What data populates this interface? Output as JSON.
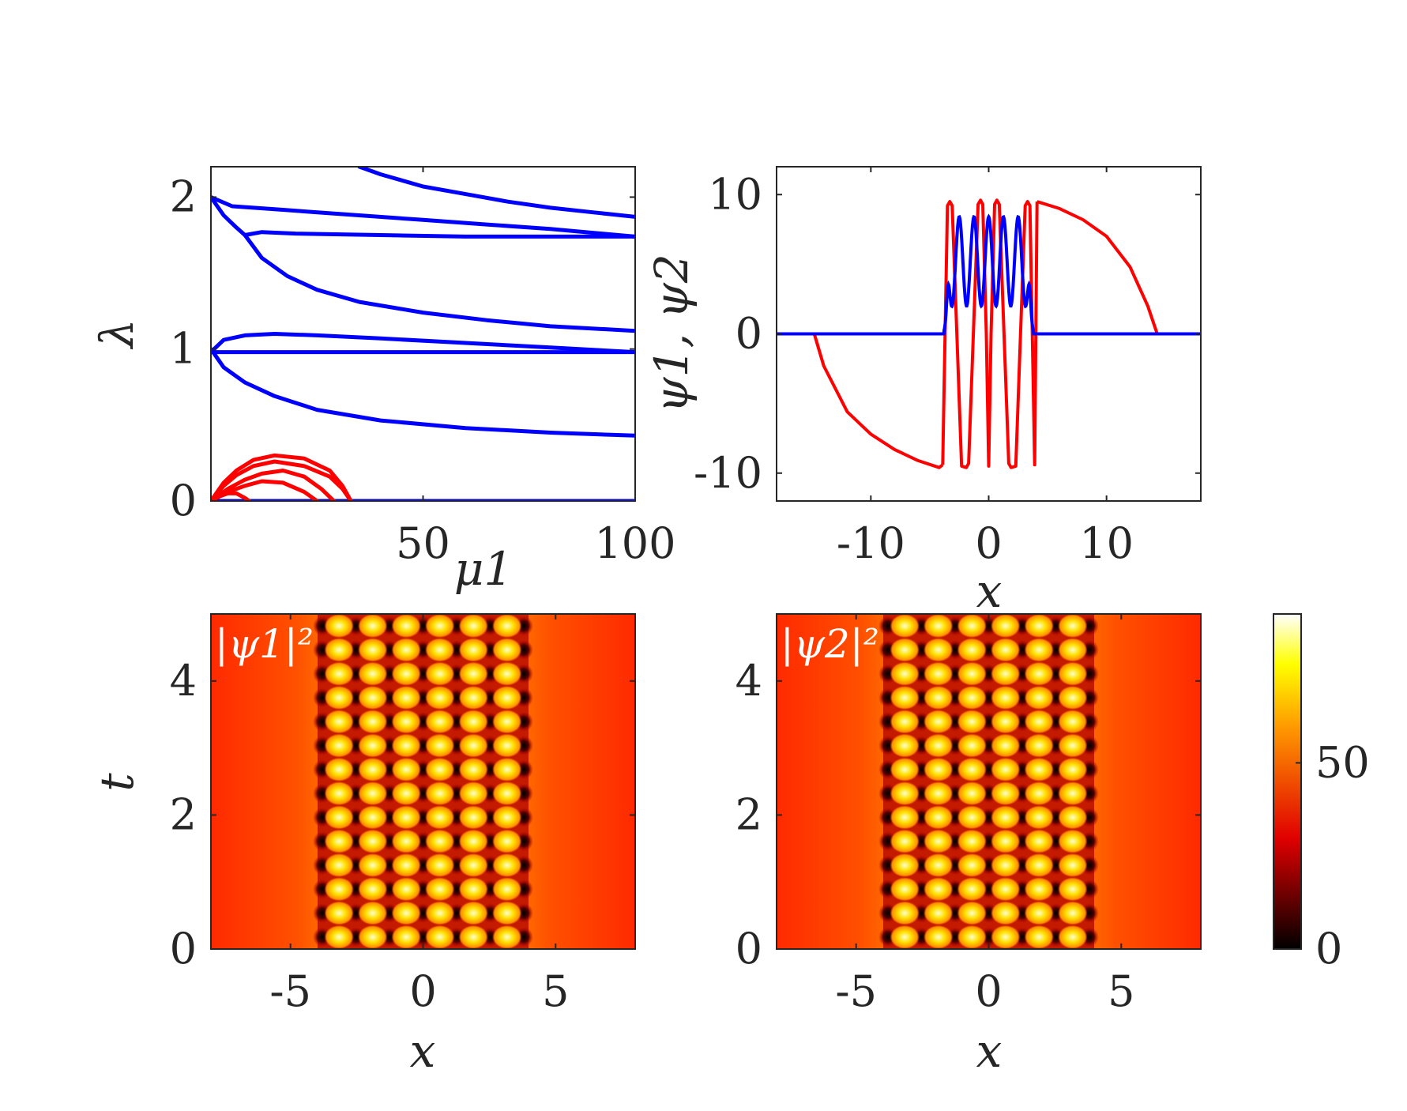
{
  "chart_data": [
    {
      "type": "line",
      "panel": "top-left",
      "xlabel": "μ1",
      "ylabel": "λ",
      "xlim": [
        0,
        100
      ],
      "ylim": [
        0,
        2.2
      ],
      "xticks": [
        {
          "value": 50,
          "label": "50"
        },
        {
          "value": 100,
          "label": "100"
        }
      ],
      "yticks": [
        {
          "value": 0,
          "label": "0"
        },
        {
          "value": 1,
          "label": "1"
        },
        {
          "value": 2,
          "label": "2"
        }
      ],
      "grid": false,
      "series": [
        {
          "color": "#0000ff",
          "x": [
            0,
            100
          ],
          "y": [
            0,
            0
          ]
        },
        {
          "color": "#0000ff",
          "x": [
            0,
            3,
            8,
            15,
            25,
            40,
            60,
            80,
            100
          ],
          "y": [
            1,
            0.88,
            0.78,
            0.69,
            0.6,
            0.53,
            0.48,
            0.45,
            0.43
          ]
        },
        {
          "color": "#0000ff",
          "x": [
            0,
            2,
            5,
            10,
            20,
            40,
            60,
            80,
            100
          ],
          "y": [
            0.98,
            0.98,
            0.98,
            0.98,
            0.98,
            0.98,
            0.98,
            0.98,
            0.98
          ]
        },
        {
          "color": "#0000ff",
          "x": [
            0,
            3,
            8,
            15,
            25,
            40,
            60,
            80,
            100
          ],
          "y": [
            0.98,
            1.06,
            1.09,
            1.1,
            1.09,
            1.07,
            1.04,
            1.01,
            0.98
          ]
        },
        {
          "color": "#0000ff",
          "x": [
            8,
            12,
            18,
            25,
            35,
            50,
            65,
            80,
            100
          ],
          "y": [
            1.75,
            1.6,
            1.48,
            1.39,
            1.31,
            1.24,
            1.19,
            1.15,
            1.12
          ]
        },
        {
          "color": "#0000ff",
          "x": [
            0,
            3,
            6,
            8,
            12,
            20,
            40,
            60,
            80,
            100
          ],
          "y": [
            2.0,
            1.88,
            1.8,
            1.75,
            1.77,
            1.76,
            1.75,
            1.74,
            1.74,
            1.74
          ]
        },
        {
          "color": "#0000ff",
          "x": [
            0,
            5,
            15,
            30,
            50,
            65,
            80,
            100
          ],
          "y": [
            2.0,
            1.94,
            1.92,
            1.89,
            1.85,
            1.82,
            1.79,
            1.74
          ]
        },
        {
          "color": "#0000ff",
          "x": [
            35,
            40,
            50,
            60,
            70,
            80,
            90,
            100
          ],
          "y": [
            2.2,
            2.15,
            2.07,
            2.02,
            1.97,
            1.93,
            1.9,
            1.87
          ]
        },
        {
          "color": "#ff0000",
          "x": [
            0,
            3,
            6,
            10,
            15,
            22,
            28,
            31,
            33
          ],
          "y": [
            0,
            0.12,
            0.2,
            0.27,
            0.3,
            0.28,
            0.2,
            0.1,
            0
          ]
        },
        {
          "color": "#ff0000",
          "x": [
            0,
            3,
            6,
            10,
            15,
            22,
            28,
            31,
            33
          ],
          "y": [
            0,
            0.1,
            0.17,
            0.23,
            0.26,
            0.23,
            0.16,
            0.08,
            0
          ]
        },
        {
          "color": "#ff0000",
          "x": [
            0,
            4,
            8,
            12,
            17,
            22,
            26,
            29
          ],
          "y": [
            0,
            0.08,
            0.14,
            0.18,
            0.2,
            0.16,
            0.08,
            0
          ]
        },
        {
          "color": "#ff0000",
          "x": [
            0,
            4,
            8,
            12,
            17,
            22,
            25
          ],
          "y": [
            0,
            0.06,
            0.1,
            0.13,
            0.12,
            0.06,
            0
          ]
        },
        {
          "color": "#ff0000",
          "x": [
            0,
            2,
            4,
            6,
            8,
            9
          ],
          "y": [
            0,
            0.03,
            0.05,
            0.05,
            0.02,
            0
          ]
        }
      ]
    },
    {
      "type": "line",
      "panel": "top-right",
      "xlabel": "x",
      "ylabel": "ψ1, ψ2",
      "xlim": [
        -18,
        18
      ],
      "ylim": [
        -12,
        12
      ],
      "xticks": [
        {
          "value": -10,
          "label": "-10"
        },
        {
          "value": 0,
          "label": "0"
        },
        {
          "value": 10,
          "label": "10"
        }
      ],
      "yticks": [
        {
          "value": -10,
          "label": "-10"
        },
        {
          "value": 0,
          "label": "0"
        },
        {
          "value": 10,
          "label": "10"
        }
      ],
      "grid": false,
      "series": [
        {
          "color": "#ff0000",
          "x": [
            -18,
            -14.8,
            -14,
            -12,
            -10,
            -8,
            -6,
            -4.2,
            -3.9
          ],
          "y": [
            0,
            0,
            -2.3,
            -5.6,
            -7.2,
            -8.3,
            -9.1,
            -9.6,
            -9.4
          ]
        },
        {
          "color": "#ff0000",
          "x": [
            -3.9,
            -3.7,
            -3.5,
            -3.3,
            -3.1,
            -2.7,
            -2.3,
            -1.9,
            -1.7,
            -1.3,
            -0.9,
            -0.7,
            -0.5,
            -0.2,
            0,
            0.2,
            0.5,
            0.7,
            0.9,
            1.3,
            1.7,
            1.9,
            2.3,
            2.7,
            3.1,
            3.3,
            3.5,
            3.7,
            3.9,
            4.1
          ],
          "y": [
            -9.4,
            0,
            9.2,
            9.5,
            9.2,
            0,
            -9.5,
            -9.6,
            -9.3,
            0,
            9.3,
            9.6,
            9.3,
            0,
            -9.5,
            0,
            9.3,
            9.6,
            9.3,
            0,
            -9.3,
            -9.6,
            -9.5,
            0,
            9.2,
            9.5,
            9.2,
            0,
            -9.4,
            9.5
          ]
        },
        {
          "color": "#ff0000",
          "x": [
            4.1,
            6,
            8,
            10,
            12,
            13.5,
            14.3,
            15,
            18
          ],
          "y": [
            9.5,
            9.0,
            8.2,
            7.0,
            4.8,
            2.0,
            0,
            0,
            0
          ]
        }
      ]
    },
    {
      "type": "heatmap",
      "panel": "bottom-left",
      "inset_label": "|ψ1|²",
      "xlabel": "x",
      "ylabel": "t",
      "xlim": [
        -8,
        8
      ],
      "ylim": [
        0,
        5
      ],
      "xticks": [
        {
          "value": -5,
          "label": "-5"
        },
        {
          "value": 0,
          "label": "0"
        },
        {
          "value": 5,
          "label": "5"
        }
      ],
      "yticks": [
        {
          "value": 0,
          "label": "0"
        },
        {
          "value": 2,
          "label": "2"
        },
        {
          "value": 4,
          "label": "4"
        }
      ],
      "colormap": "hot",
      "pattern": {
        "lattice_x_range": [
          -3.8,
          3.8
        ],
        "columns": 6,
        "rows": 14
      }
    },
    {
      "type": "heatmap",
      "panel": "bottom-right",
      "inset_label": "|ψ2|²",
      "xlabel": "x",
      "xlim": [
        -8,
        8
      ],
      "ylim": [
        0,
        5
      ],
      "xticks": [
        {
          "value": -5,
          "label": "-5"
        },
        {
          "value": 0,
          "label": "0"
        },
        {
          "value": 5,
          "label": "5"
        }
      ],
      "yticks": [
        {
          "value": 0,
          "label": "0"
        },
        {
          "value": 2,
          "label": "2"
        },
        {
          "value": 4,
          "label": "4"
        }
      ],
      "colormap": "hot",
      "pattern": {
        "lattice_x_range": [
          -3.8,
          3.8
        ],
        "columns": 6,
        "rows": 14
      }
    },
    {
      "type": "colorbar",
      "panel": "colorbar",
      "range": [
        0,
        90
      ],
      "ticks": [
        {
          "value": 0,
          "label": "0"
        },
        {
          "value": 50,
          "label": "50"
        }
      ]
    }
  ]
}
